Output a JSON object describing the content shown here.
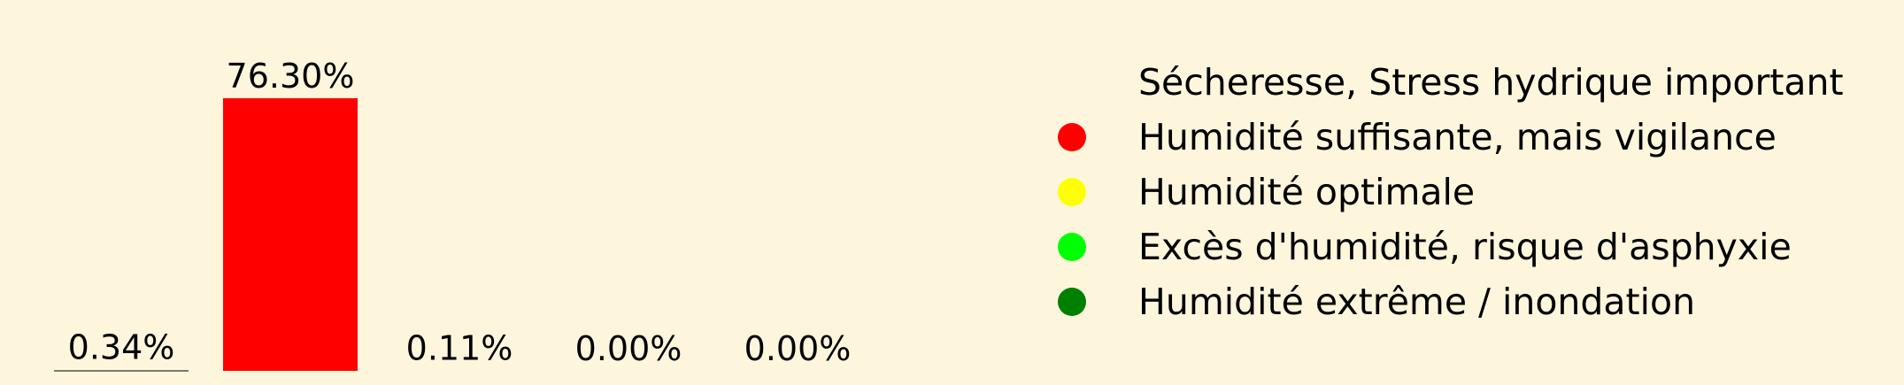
{
  "colors": {
    "background": "#fdf6dc",
    "text": "#000000"
  },
  "chart_data": {
    "type": "bar",
    "title": "",
    "xlabel": "",
    "ylabel": "",
    "categories": [
      "Sécheresse, Stress hydrique important",
      "Humidité suffisante, mais vigilance",
      "Humidité optimale",
      "Excès d'humidité, risque d'asphyxie",
      "Humidité extrême / inondation"
    ],
    "values": [
      0.34,
      76.3,
      0.11,
      0.0,
      0.0
    ],
    "value_labels": [
      "0.34%",
      "76.30%",
      "0.11%",
      "0.00%",
      "0.00%"
    ],
    "colors": [
      "#fdf6dc",
      "#ff0000",
      "#ffff00",
      "#00ff00",
      "#008000"
    ],
    "ylim": [
      0,
      100
    ],
    "grid": false,
    "legend_position": "right",
    "legend": [
      {
        "label": "Sécheresse, Stress hydrique important",
        "color": "#fdf6dc"
      },
      {
        "label": "Humidité suffisante, mais vigilance",
        "color": "#ff0000"
      },
      {
        "label": "Humidité optimale",
        "color": "#ffff00"
      },
      {
        "label": "Excès d'humidité, risque d'asphyxie",
        "color": "#00ff00"
      },
      {
        "label": "Humidité extrême / inondation",
        "color": "#008000"
      }
    ]
  }
}
